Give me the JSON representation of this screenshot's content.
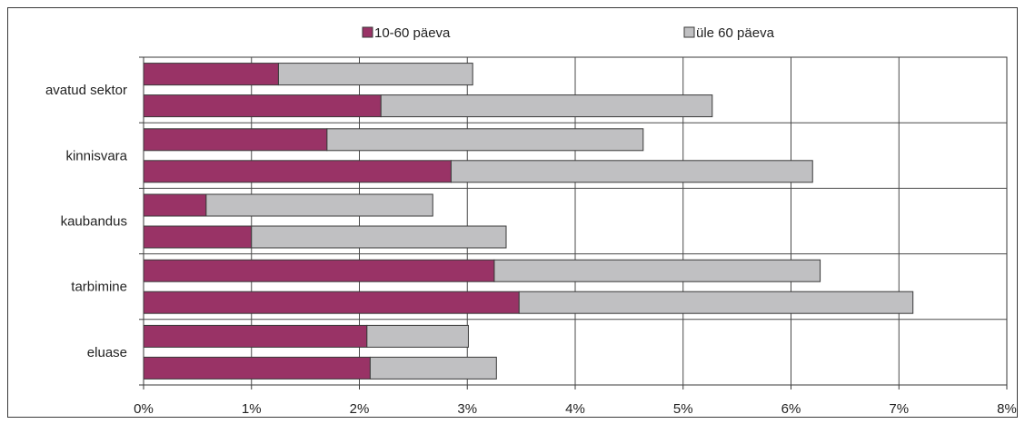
{
  "chart_data": {
    "type": "bar",
    "orientation": "horizontal",
    "stacked": true,
    "categories": [
      "avatud sektor",
      "kinnisvara",
      "kaubandus",
      "tarbimine",
      "eluase"
    ],
    "bars_per_category": 2,
    "series": [
      {
        "name": "10-60 päeva",
        "color": "#993366",
        "values": [
          [
            1.25,
            2.2
          ],
          [
            1.7,
            2.85
          ],
          [
            0.58,
            1.0
          ],
          [
            3.25,
            3.48
          ],
          [
            2.07,
            2.1
          ]
        ]
      },
      {
        "name": "üle 60 päeva",
        "color": "#c0c0c2",
        "values": [
          [
            1.8,
            3.07
          ],
          [
            2.93,
            3.35
          ],
          [
            2.1,
            2.36
          ],
          [
            3.02,
            3.65
          ],
          [
            0.94,
            1.17
          ]
        ]
      }
    ],
    "xlim": [
      0,
      8
    ],
    "xticks": [
      "0%",
      "1%",
      "2%",
      "3%",
      "4%",
      "5%",
      "6%",
      "7%",
      "8%"
    ],
    "grid": true,
    "legend_position": "top"
  }
}
